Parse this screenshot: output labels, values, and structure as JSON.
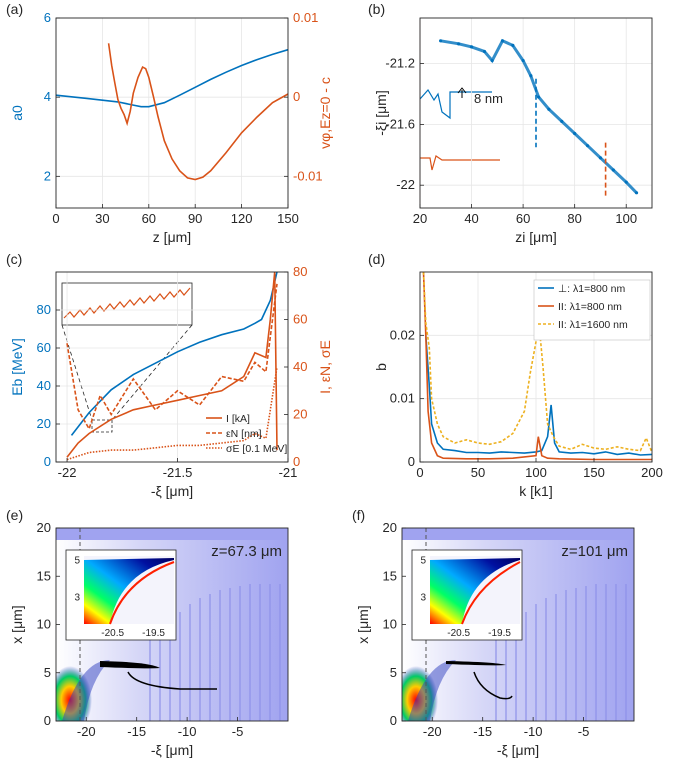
{
  "colors": {
    "blue": "#0072bd",
    "orange": "#d95319",
    "yellow": "#edb120",
    "field": "#a0a3f0",
    "axis": "#262626",
    "grid": "#e6e6e6"
  },
  "chart_data": [
    {
      "id": "a",
      "panel_label": "(a)",
      "type": "line",
      "xlabel": "z [μm]",
      "ylabel": "a0",
      "ylabel_right": "vφ,Ez=0 - c",
      "xlim": [
        0,
        150
      ],
      "ylim": [
        1.2,
        6
      ],
      "ylim_right": [
        -0.014,
        0.01
      ],
      "xticks": [
        0,
        30,
        60,
        90,
        120,
        150
      ],
      "yticks": [
        2,
        4,
        6
      ],
      "yticks_right": [
        {
          "v": 0.01,
          "label": "0.01"
        },
        {
          "v": 0,
          "label": "0"
        },
        {
          "v": -0.01,
          "label": "-0.01"
        }
      ],
      "series": [
        {
          "name": "a0",
          "axis": "left",
          "color": "blue",
          "x": [
            0,
            20,
            40,
            50,
            55,
            60,
            70,
            80,
            90,
            100,
            110,
            120,
            130,
            140,
            150
          ],
          "y": [
            4.05,
            3.97,
            3.88,
            3.8,
            3.76,
            3.76,
            3.86,
            4.05,
            4.25,
            4.45,
            4.63,
            4.8,
            4.95,
            5.08,
            5.2
          ]
        },
        {
          "name": "v_phi",
          "axis": "right",
          "color": "orange",
          "x": [
            34,
            36,
            38,
            40,
            42,
            44,
            46,
            48,
            50,
            53,
            56,
            58,
            60,
            63,
            66,
            70,
            75,
            80,
            85,
            90,
            95,
            100,
            110,
            120,
            130,
            140,
            150
          ],
          "y": [
            0.0068,
            0.004,
            0.0018,
            -0.0003,
            -0.0014,
            -0.0022,
            -0.0033,
            -0.0018,
            0.0005,
            0.0025,
            0.0038,
            0.0036,
            0.0025,
            0.0001,
            -0.0025,
            -0.0055,
            -0.0078,
            -0.0093,
            -0.0102,
            -0.0104,
            -0.0101,
            -0.0093,
            -0.007,
            -0.0045,
            -0.0025,
            -0.0007,
            0.0004
          ]
        }
      ]
    },
    {
      "id": "b",
      "panel_label": "(b)",
      "type": "scatter",
      "xlabel": "zi [μm]",
      "ylabel": "-ξi [μm]",
      "xlim": [
        20,
        110
      ],
      "ylim": [
        -22.15,
        -20.9
      ],
      "xticks": [
        20,
        40,
        60,
        80,
        100
      ],
      "yticks": [
        {
          "v": -21.2,
          "label": "-21.2"
        },
        {
          "v": -21.6,
          "label": "-21.6"
        },
        {
          "v": -22,
          "label": "-22"
        }
      ],
      "series": [
        {
          "name": "particles",
          "color": "blue",
          "x": [
            28,
            35,
            40,
            45,
            48,
            52,
            56,
            60,
            63,
            66,
            70,
            75,
            80,
            85,
            90,
            95,
            100,
            104
          ],
          "y": [
            -21.05,
            -21.07,
            -21.09,
            -21.12,
            -21.18,
            -21.05,
            -21.08,
            -21.18,
            -21.28,
            -21.42,
            -21.5,
            -21.58,
            -21.66,
            -21.74,
            -21.82,
            -21.9,
            -21.98,
            -22.05
          ]
        },
        {
          "name": "dashed-blue",
          "color": "blue",
          "x": [
            65,
            65
          ],
          "y": [
            -21.3,
            -21.75
          ]
        },
        {
          "name": "dashed-orange",
          "color": "orange",
          "x": [
            92,
            92
          ],
          "y": [
            -21.72,
            -22.08
          ]
        }
      ],
      "annotations": [
        {
          "text": "8 nm"
        }
      ]
    },
    {
      "id": "c",
      "panel_label": "(c)",
      "type": "line",
      "xlabel": "-ξ [μm]",
      "ylabel": "Eb [MeV]",
      "ylabel_right": "I, εN, σE",
      "xlim": [
        -22.05,
        -21
      ],
      "ylim": [
        0,
        100
      ],
      "ylim_right": [
        0,
        80
      ],
      "xticks": [
        {
          "v": -22,
          "label": "-22"
        },
        {
          "v": -21.5,
          "label": "-21.5"
        },
        {
          "v": -21,
          "label": "-21"
        }
      ],
      "yticks": [
        0,
        20,
        40,
        60,
        80
      ],
      "yticks_right": [
        0,
        20,
        40,
        60,
        80
      ],
      "legend": [
        "I [kA]",
        "εN [nm]",
        "σE [0.1 MeV]"
      ],
      "series": [
        {
          "name": "Eb",
          "axis": "left",
          "color": "blue",
          "x": [
            -21.98,
            -21.9,
            -21.8,
            -21.7,
            -21.6,
            -21.5,
            -21.4,
            -21.3,
            -21.2,
            -21.15,
            -21.12,
            -21.08,
            -21.05
          ],
          "y": [
            14,
            26,
            38,
            46,
            52,
            58,
            63,
            67,
            70,
            73,
            75,
            85,
            100
          ]
        },
        {
          "name": "I [kA]",
          "axis": "right",
          "color": "orange",
          "x": [
            -22,
            -21.95,
            -21.9,
            -21.8,
            -21.7,
            -21.6,
            -21.5,
            -21.4,
            -21.3,
            -21.2,
            -21.15,
            -21.1,
            -21.08,
            -21.06,
            -21.05
          ],
          "y": [
            2,
            8,
            12,
            18,
            22,
            24,
            26,
            28,
            30,
            36,
            46,
            44,
            60,
            80,
            5
          ]
        },
        {
          "name": "εN [nm]",
          "axis": "right",
          "color": "orange",
          "x": [
            -22,
            -21.95,
            -21.9,
            -21.85,
            -21.8,
            -21.7,
            -21.6,
            -21.5,
            -21.4,
            -21.3,
            -21.2,
            -21.15,
            -21.1,
            -21.05
          ],
          "y": [
            50,
            22,
            14,
            28,
            20,
            35,
            22,
            30,
            24,
            36,
            34,
            42,
            38,
            75
          ]
        },
        {
          "name": "σE [0.1 MeV]",
          "axis": "right",
          "color": "orange",
          "x": [
            -22,
            -21.9,
            -21.8,
            -21.7,
            -21.6,
            -21.5,
            -21.4,
            -21.3,
            -21.2,
            -21.15,
            -21.1,
            -21.05
          ],
          "y": [
            1,
            4,
            5,
            5,
            6,
            7,
            7,
            8,
            9,
            12,
            10,
            40
          ]
        }
      ]
    },
    {
      "id": "d",
      "panel_label": "(d)",
      "type": "line",
      "xlabel": "k [k1]",
      "ylabel": "b",
      "xlim": [
        0,
        200
      ],
      "ylim": [
        0,
        0.03
      ],
      "xticks": [
        0,
        50,
        100,
        150,
        200
      ],
      "yticks": [
        {
          "v": 0,
          "label": "0"
        },
        {
          "v": 0.01,
          "label": "0.01"
        },
        {
          "v": 0.02,
          "label": "0.02"
        }
      ],
      "legend": [
        "⊥: λ1=800 nm",
        "II: λ1=800 nm",
        "II: λ1=1600 nm"
      ],
      "series": [
        {
          "name": "⊥: λ1=800 nm",
          "color": "blue",
          "x": [
            5,
            8,
            10,
            15,
            20,
            30,
            40,
            50,
            60,
            70,
            80,
            90,
            100,
            105,
            110,
            113,
            116,
            120,
            130,
            140,
            150,
            160,
            170,
            180,
            190,
            200
          ],
          "y": [
            0.02,
            0.012,
            0.006,
            0.003,
            0.002,
            0.0018,
            0.0015,
            0.0015,
            0.0014,
            0.0016,
            0.0015,
            0.0014,
            0.0016,
            0.0018,
            0.004,
            0.009,
            0.003,
            0.0016,
            0.0014,
            0.0015,
            0.0013,
            0.0016,
            0.0012,
            0.0014,
            0.0011,
            0.0012
          ]
        },
        {
          "name": "II: λ1=800 nm",
          "color": "orange",
          "x": [
            3,
            5,
            7,
            10,
            15,
            20,
            40,
            60,
            80,
            100,
            102,
            105,
            110,
            120,
            150,
            180,
            200
          ],
          "y": [
            0.03,
            0.02,
            0.008,
            0.003,
            0.001,
            0.0006,
            0.0005,
            0.0005,
            0.0006,
            0.001,
            0.004,
            0.001,
            0.0006,
            0.0005,
            0.0004,
            0.0004,
            0.0004
          ]
        },
        {
          "name": "II: λ1=1600 nm",
          "color": "yellow",
          "x": [
            3,
            5,
            8,
            10,
            15,
            20,
            30,
            40,
            50,
            60,
            70,
            80,
            90,
            95,
            100,
            103,
            106,
            110,
            115,
            120,
            130,
            140,
            150,
            160,
            170,
            180,
            190,
            195,
            200
          ],
          "y": [
            0.03,
            0.022,
            0.018,
            0.01,
            0.006,
            0.004,
            0.003,
            0.0035,
            0.003,
            0.0028,
            0.0032,
            0.0045,
            0.008,
            0.014,
            0.019,
            0.021,
            0.015,
            0.006,
            0.004,
            0.0025,
            0.002,
            0.0028,
            0.0022,
            0.002,
            0.0024,
            0.002,
            0.0018,
            0.0038,
            0.0015
          ]
        }
      ]
    },
    {
      "id": "e",
      "panel_label": "(e)",
      "type": "heatmap",
      "title": "z=67.3 μm",
      "xlabel": "-ξ [μm]",
      "ylabel": "x [μm]",
      "xlim": [
        -23,
        0
      ],
      "ylim": [
        0,
        20
      ],
      "xticks": [
        -20,
        -15,
        -10,
        -5
      ],
      "yticks": [
        0,
        5,
        10,
        15,
        20
      ],
      "inset": {
        "xticks": [
          {
            "v": -20.5,
            "label": "-20.5"
          },
          {
            "v": -19.5,
            "label": "-19.5"
          }
        ],
        "yticks": [
          {
            "v": 3,
            "label": "3"
          },
          {
            "v": 5,
            "label": "5"
          }
        ]
      }
    },
    {
      "id": "f",
      "panel_label": "(f)",
      "type": "heatmap",
      "title": "z=101 μm",
      "xlabel": "-ξ [μm]",
      "ylabel": "x [μm]",
      "xlim": [
        -23,
        0
      ],
      "ylim": [
        0,
        20
      ],
      "xticks": [
        -20,
        -15,
        -10,
        -5
      ],
      "yticks": [
        0,
        5,
        10,
        15,
        20
      ],
      "inset": {
        "xticks": [
          {
            "v": -20.5,
            "label": "-20.5"
          },
          {
            "v": -19.5,
            "label": "-19.5"
          }
        ],
        "yticks": [
          {
            "v": 3,
            "label": "3"
          },
          {
            "v": 5,
            "label": "5"
          }
        ]
      }
    }
  ]
}
